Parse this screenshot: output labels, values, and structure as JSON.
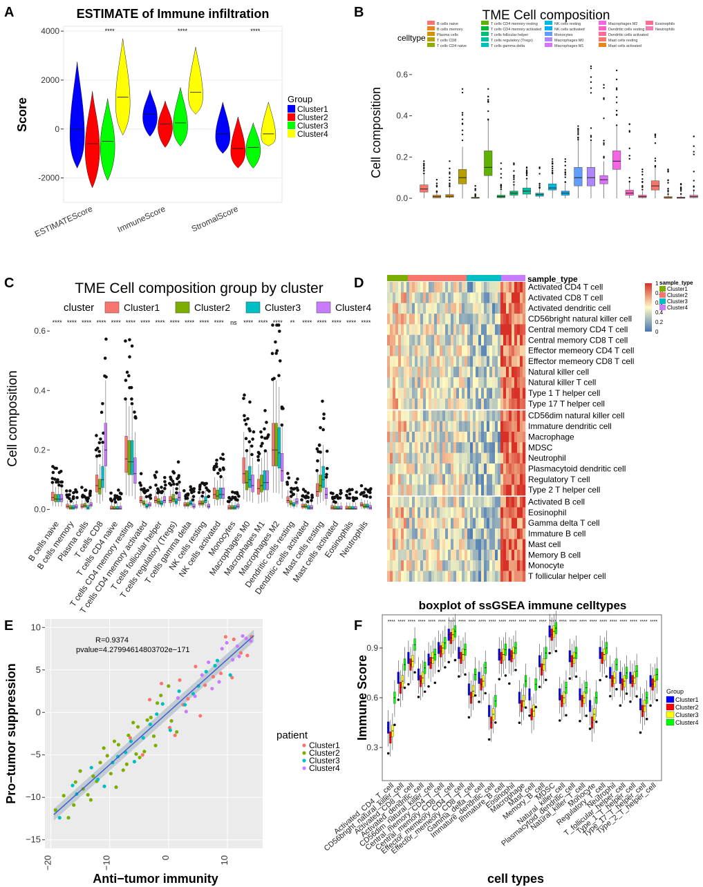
{
  "figure": {
    "panel_labels": [
      "A",
      "B",
      "C",
      "D",
      "E",
      "F"
    ]
  },
  "chart_data": [
    {
      "panel": "A",
      "type": "violin",
      "title": "ESTIMATE of Immune infiltration",
      "xlabel": "",
      "ylabel": "Score",
      "ylim": [
        -3000,
        4200
      ],
      "yticks": [
        -2000,
        0,
        2000,
        4000
      ],
      "yticklabels": [
        "-2000",
        "0",
        "2000",
        "4000"
      ],
      "categories": [
        "ESTIMATEScore",
        "ImmuneScore",
        "StromalScore"
      ],
      "significance": [
        "****",
        "****",
        "****"
      ],
      "legend_title": "Group",
      "legend_position": "right",
      "series": [
        {
          "name": "Cluster1",
          "color": "#0000ff",
          "min": [
            -1600,
            -300,
            -1000
          ],
          "max": [
            2750,
            1600,
            1100
          ],
          "median": [
            0,
            600,
            -200
          ]
        },
        {
          "name": "Cluster2",
          "color": "#ff0000",
          "min": [
            -2400,
            -750,
            -1600
          ],
          "max": [
            1550,
            1150,
            500
          ],
          "median": [
            -600,
            200,
            -800
          ]
        },
        {
          "name": "Cluster3",
          "color": "#00ff00",
          "min": [
            -2100,
            -700,
            -1600
          ],
          "max": [
            1250,
            1700,
            250
          ],
          "median": [
            -500,
            250,
            -750
          ]
        },
        {
          "name": "Cluster4",
          "color": "#ffff00",
          "min": [
            -250,
            600,
            -700
          ],
          "max": [
            3700,
            3350,
            1100
          ],
          "median": [
            1300,
            1500,
            -200
          ]
        }
      ]
    },
    {
      "panel": "B",
      "type": "box",
      "title": "TME Cell composition",
      "xlabel": "",
      "ylabel": "Cell composition",
      "ylim": [
        -0.02,
        0.66
      ],
      "yticks": [
        0,
        0.2,
        0.4,
        0.6
      ],
      "yticklabels": [
        "0.0",
        "0.2",
        "0.4",
        "0.6"
      ],
      "legend_title": "celltype",
      "legend_position": "top",
      "categories": [
        "B cells naive",
        "B cells memory",
        "Plasma cells",
        "T cells CD8",
        "T cells CD4 naive",
        "T cells CD4 memory resting",
        "T cells CD4 memory activated",
        "T cells follicular helper",
        "T cells regulatory (Tregs)",
        "T cells gamma delta",
        "NK cells resting",
        "NK cells activated",
        "Monocytes",
        "Macrophages M0",
        "Macrophages M1",
        "Macrophages M2",
        "Dendritic cells resting",
        "Dendritic cells activated",
        "Mast cells resting",
        "Mast cells activated",
        "Eosinophils",
        "Neutrophils"
      ],
      "colors": [
        "#f8766d",
        "#e7861b",
        "#d39200",
        "#b79f00",
        "#93aa00",
        "#5eb300",
        "#00ba38",
        "#00bf74",
        "#00c19f",
        "#00bfc4",
        "#00b9e3",
        "#00adfa",
        "#619cff",
        "#ae87ff",
        "#db72fb",
        "#f564e3",
        "#ff61c3",
        "#ff699c",
        "#f8766d",
        "#e7861b",
        "#ff6c91",
        "#f17eb0"
      ],
      "q1": [
        0.03,
        0.002,
        0.005,
        0.07,
        0.0,
        0.11,
        0.003,
        0.015,
        0.02,
        0.01,
        0.04,
        0.015,
        0.06,
        0.06,
        0.07,
        0.14,
        0.015,
        0.003,
        0.04,
        0.0,
        0.0,
        0.003
      ],
      "median": [
        0.045,
        0.008,
        0.01,
        0.1,
        0.002,
        0.15,
        0.008,
        0.025,
        0.035,
        0.018,
        0.05,
        0.025,
        0.1,
        0.1,
        0.09,
        0.18,
        0.025,
        0.008,
        0.06,
        0.003,
        0.002,
        0.008
      ],
      "q3": [
        0.065,
        0.015,
        0.018,
        0.14,
        0.005,
        0.23,
        0.015,
        0.035,
        0.05,
        0.025,
        0.07,
        0.035,
        0.15,
        0.15,
        0.11,
        0.23,
        0.04,
        0.015,
        0.085,
        0.008,
        0.006,
        0.015
      ],
      "whisker_low": [
        0.0,
        0.0,
        0.0,
        0.0,
        0.0,
        0.0,
        0.0,
        0.0,
        0.0,
        0.0,
        0.0,
        0.0,
        0.0,
        0.0,
        0.0,
        0.0,
        0.0,
        0.0,
        0.0,
        0.0,
        0.0,
        0.0
      ],
      "whisker_high": [
        0.12,
        0.03,
        0.05,
        0.25,
        0.01,
        0.38,
        0.035,
        0.065,
        0.09,
        0.05,
        0.12,
        0.07,
        0.28,
        0.28,
        0.18,
        0.35,
        0.08,
        0.035,
        0.15,
        0.02,
        0.015,
        0.035
      ],
      "outlier_max": [
        0.18,
        0.09,
        0.18,
        0.53,
        0.06,
        0.53,
        0.17,
        0.17,
        0.15,
        0.15,
        0.19,
        0.19,
        0.35,
        0.64,
        0.55,
        0.62,
        0.36,
        0.14,
        0.31,
        0.14,
        0.07,
        0.3
      ]
    },
    {
      "panel": "C",
      "type": "box",
      "title": "TME Cell composition group by cluster",
      "xlabel": "",
      "ylabel": "Cell composition",
      "ylim": [
        -0.02,
        0.64
      ],
      "yticks": [
        0,
        0.2,
        0.4,
        0.6
      ],
      "yticklabels": [
        "0.0",
        "0.2",
        "0.4",
        "0.6"
      ],
      "legend_title": "cluster",
      "legend_position": "top",
      "series_names": [
        "Cluster1",
        "Cluster2",
        "Cluster3",
        "Cluster4"
      ],
      "series_colors": [
        "#f8766d",
        "#7cae00",
        "#00bfc4",
        "#c77cff"
      ],
      "categories": [
        "B cells naive",
        "B cells memory",
        "Plasma cells",
        "T cells CD8",
        "T cells CD4 naive",
        "T cells CD4 memory resting",
        "T cells CD4 memory activated",
        "T cells follicular helper",
        "T cells regulatory (Tregs)",
        "T cells gamma delta",
        "NK cells resting",
        "NK cells activated",
        "Monocytes",
        "Macrophages M0",
        "Macrophages M1",
        "Macrophages M2",
        "Dendritic cells resting",
        "Dendritic cells activated",
        "Mast cells resting",
        "Mast cells activated",
        "Eosinophils",
        "Neutrophils"
      ],
      "significance": [
        "****",
        "****",
        "****",
        "****",
        "****",
        "****",
        "****",
        "****",
        "****",
        "****",
        "****",
        "****",
        "ns",
        "****",
        "****",
        "****",
        "**",
        "****",
        "****",
        "****",
        "****",
        "****"
      ],
      "median": [
        [
          0.04,
          0.035,
          0.035,
          0.035
        ],
        [
          0.01,
          0.005,
          0.005,
          0.008
        ],
        [
          0.01,
          0.012,
          0.005,
          0.015
        ],
        [
          0.08,
          0.07,
          0.1,
          0.2
        ],
        [
          0.003,
          0.002,
          0.002,
          0.003
        ],
        [
          0.17,
          0.16,
          0.16,
          0.12
        ],
        [
          0.03,
          0.02,
          0.01,
          0.015
        ],
        [
          0.03,
          0.025,
          0.02,
          0.03
        ],
        [
          0.03,
          0.035,
          0.025,
          0.04
        ],
        [
          0.015,
          0.015,
          0.02,
          0.01
        ],
        [
          0.02,
          0.02,
          0.03,
          0.01
        ],
        [
          0.05,
          0.045,
          0.05,
          0.05
        ],
        [
          0.005,
          0.005,
          0.005,
          0.01
        ],
        [
          0.12,
          0.09,
          0.1,
          0.08
        ],
        [
          0.07,
          0.08,
          0.09,
          0.09
        ],
        [
          0.2,
          0.2,
          0.19,
          0.13
        ],
        [
          0.03,
          0.02,
          0.015,
          0.025
        ],
        [
          0.01,
          0.01,
          0.005,
          0.005
        ],
        [
          0.06,
          0.08,
          0.1,
          0.05
        ],
        [
          0.005,
          0.003,
          0.002,
          0.003
        ],
        [
          0.003,
          0.002,
          0.002,
          0.002
        ],
        [
          0.015,
          0.01,
          0.01,
          0.005
        ]
      ]
    },
    {
      "panel": "D",
      "type": "heatmap",
      "title": "",
      "column_annotation_title": "sample_type",
      "column_groups": [
        "Cluster1",
        "Cluster2",
        "Cluster3",
        "Cluster4"
      ],
      "column_group_colors": [
        "#7cae00",
        "#f8766d",
        "#00bfc4",
        "#c77cff"
      ],
      "rows": [
        "Activated CD4 T cell",
        "Activated CD8 T cell",
        "Activated dendritic cell",
        "CD56bright natural killer cell",
        "Central memory CD4 T cell",
        "Central memory CD8 T cell",
        "Effector memeory CD4 T cell",
        "Effector memeory CD8 T cell",
        "Natural killer cell",
        "Natural killer T cell",
        "Type 1 T helper cell",
        "Type 17 T helper cell",
        "CD56dim natural killer cell",
        "Immature dendritic cell",
        "Macrophage",
        "MDSC",
        "Neutrophil",
        "Plasmacytoid dendritic cell",
        "Regulatory T cell",
        "Type 2 T helper cell",
        "Activated B cell",
        "Eosinophil",
        "Gamma delta T cell",
        "Immature  B cell",
        "Mast cell",
        "Memory B cell",
        "Monocyte",
        "T follicular helper cell"
      ],
      "colorbar_ticks": [
        0,
        0.2,
        0.4,
        0.6,
        0.8,
        1
      ],
      "colorbar_ticklabels": [
        "0",
        "0.2",
        "0.4",
        "0.6",
        "0.8",
        "1"
      ],
      "colorscale": [
        "#4575b4",
        "#fffbc4",
        "#d73027"
      ],
      "mean_by_group": [
        0.55,
        0.42,
        0.3,
        0.85
      ]
    },
    {
      "panel": "E",
      "type": "scatter",
      "title": "",
      "xlabel": "Anti−tumor immunity",
      "ylabel": "Pro−tumor suppression",
      "xlim": [
        -21,
        16
      ],
      "ylim": [
        -16,
        11
      ],
      "xticks": [
        -20,
        -10,
        0,
        10
      ],
      "xticklabels": [
        "−20",
        "−10",
        "0",
        "10"
      ],
      "yticks": [
        -15,
        -10,
        -5,
        0,
        5,
        10
      ],
      "yticklabels": [
        "−15",
        "−10",
        "−5",
        "0",
        "5",
        "10"
      ],
      "annotation_r": "R=0.9374",
      "annotation_p": "pvalue=4.27994614803702e−171",
      "regression": {
        "slope": 0.62,
        "intercept": 0.05
      },
      "legend_title": "patient",
      "legend_position": "right",
      "series": [
        {
          "name": "Cluster1",
          "color": "#f8766d",
          "x": [
            -6.5,
            -3.2,
            1.1,
            4.6,
            8.9,
            12.3,
            2.5,
            9.7,
            6.2,
            13.4,
            5.4,
            10.8,
            -1.2,
            3.3,
            11.1,
            7.6,
            -4.4,
            0.2,
            14.1,
            1.9
          ],
          "y": [
            -3.0,
            1.5,
            -2.7,
            5.4,
            4.6,
            7.0,
            0.9,
            8.9,
            3.2,
            6.7,
            -0.4,
            4.1,
            3.4,
            1.6,
            8.6,
            4.2,
            -5.0,
            -1.8,
            8.9,
            3.8
          ]
        },
        {
          "name": "Cluster2",
          "color": "#7cae00",
          "x": [
            -19.2,
            -17.8,
            -16.1,
            -15.0,
            -13.7,
            -12.2,
            -11.0,
            -9.8,
            -8.5,
            -7.1,
            -6.0,
            -4.9,
            -3.6,
            -2.5,
            -1.3,
            0.5,
            -14.5,
            -10.4,
            -8.9,
            -5.5,
            -3.0,
            -17.0,
            -12.8,
            -9.2,
            -6.8,
            -4.1,
            -1.9,
            1.4,
            -11.6,
            -7.7,
            -13.2,
            -15.8,
            -2.2,
            0.0,
            -5.2
          ],
          "y": [
            -11.5,
            -9.8,
            -10.9,
            -6.9,
            -9.7,
            -8.1,
            -4.2,
            -7.2,
            -3.8,
            -6.1,
            -1.2,
            -5.3,
            -0.9,
            -2.8,
            2.0,
            -1.0,
            -9.0,
            -5.1,
            -8.8,
            -4.9,
            -0.6,
            -12.4,
            -7.5,
            -3.4,
            -2.7,
            -4.6,
            1.1,
            -2.3,
            -5.9,
            -6.8,
            -10.3,
            -8.2,
            -3.9,
            3.1,
            -1.7
          ]
        },
        {
          "name": "Cluster3",
          "color": "#00bfc4",
          "x": [
            -18.5,
            -15.6,
            -13.1,
            -10.9,
            -8.6,
            -6.4,
            -4.3,
            -2.0,
            0.3,
            2.8,
            5.1,
            7.9,
            10.5,
            -12.0,
            -9.5,
            -7.3,
            -3.1,
            1.8,
            4.2,
            8.3,
            -16.3,
            -5.8,
            -1.0,
            6.4
          ],
          "y": [
            -12.4,
            -9.6,
            -6.5,
            -8.7,
            -5.2,
            -3.4,
            -3.0,
            -0.2,
            -2.1,
            0.9,
            3.1,
            5.5,
            4.4,
            -7.9,
            -5.9,
            -4.7,
            -1.4,
            2.5,
            2.2,
            6.1,
            -8.6,
            -5.8,
            1.0,
            4.8
          ]
        },
        {
          "name": "Cluster4",
          "color": "#c77cff",
          "x": [
            3.0,
            5.7,
            7.4,
            9.1,
            10.9,
            12.6,
            14.0,
            6.8,
            8.6,
            11.7,
            13.2,
            4.5,
            9.9,
            12.0,
            1.6
          ],
          "y": [
            0.1,
            4.4,
            2.8,
            7.5,
            6.2,
            9.0,
            8.4,
            5.9,
            3.6,
            7.8,
            8.7,
            1.9,
            8.2,
            6.6,
            1.7
          ]
        }
      ]
    },
    {
      "panel": "F",
      "type": "box",
      "title": "boxplot of ssGSEA immune celltypes",
      "xlabel": "cell types",
      "ylabel": "Immune Score",
      "ylim": [
        0.1,
        1.1
      ],
      "yticks": [
        0.3,
        0.6,
        0.9
      ],
      "yticklabels": [
        "0.3",
        "0.6",
        "0.9"
      ],
      "legend_title": "Group",
      "legend_position": "right",
      "series_names": [
        "Cluster1",
        "Cluster2",
        "Cluster3",
        "Cluster4"
      ],
      "series_colors": [
        "#0000ff",
        "#ff0000",
        "#ffff00",
        "#00ff00"
      ],
      "categories": [
        "Activated_CD4_T_cell",
        "CD56bright_natural_killer_cell",
        "Activated_CD8_T_cell",
        "Activated_dendritic_cell",
        "CD56dim_natural_killer_cell",
        "Central_memory_CD4_T_cell",
        "Central_memory_CD8_T_cell",
        "Effector_memeory_CD4_T_cell",
        "Effector_memeory_CD8_T_cell",
        "Gamma_delta_T_cell",
        "Immature_dendritic_cell",
        "Immature_B_cell",
        "Eosinophil",
        "Macrophage",
        "Mast_cell",
        "Memory_B_cell",
        "MDSC",
        "Natural_killer_cell",
        "Plasmacytoid_dendritic_cell",
        "Natural_killer_T_cell",
        "Monocyte",
        "Regulatory_T_cell",
        "Neutrophil",
        "T_follicular_helper_cell",
        "Type_1_T_helper_cell",
        "Type_17_T_helper_cell",
        "Type_2_T_helper_cell"
      ],
      "significance_label": "****",
      "median": [
        [
          0.42,
          0.36,
          0.4,
          0.6
        ],
        [
          0.72,
          0.66,
          0.7,
          0.8
        ],
        [
          0.84,
          0.8,
          0.82,
          0.92
        ],
        [
          0.74,
          0.7,
          0.72,
          0.78
        ],
        [
          0.83,
          0.81,
          0.84,
          0.86
        ],
        [
          0.9,
          0.88,
          0.9,
          0.93
        ],
        [
          0.98,
          0.96,
          0.98,
          1.0
        ],
        [
          0.87,
          0.84,
          0.86,
          0.89
        ],
        [
          0.65,
          0.6,
          0.64,
          0.74
        ],
        [
          0.72,
          0.68,
          0.7,
          0.78
        ],
        [
          0.52,
          0.45,
          0.5,
          0.58
        ],
        [
          0.86,
          0.84,
          0.86,
          0.89
        ],
        [
          0.86,
          0.85,
          0.87,
          0.9
        ],
        [
          0.6,
          0.55,
          0.58,
          0.7
        ],
        [
          0.62,
          0.5,
          0.52,
          0.68
        ],
        [
          0.82,
          0.77,
          0.8,
          0.87
        ],
        [
          1.0,
          0.98,
          1.0,
          1.02
        ],
        [
          0.62,
          0.58,
          0.6,
          0.66
        ],
        [
          0.85,
          0.82,
          0.84,
          0.87
        ],
        [
          0.62,
          0.58,
          0.6,
          0.66
        ],
        [
          0.55,
          0.45,
          0.5,
          0.6
        ],
        [
          0.87,
          0.84,
          0.86,
          0.9
        ],
        [
          0.75,
          0.7,
          0.72,
          0.8
        ],
        [
          0.72,
          0.68,
          0.7,
          0.75
        ],
        [
          0.72,
          0.7,
          0.72,
          0.76
        ],
        [
          0.56,
          0.52,
          0.55,
          0.6
        ],
        [
          0.7,
          0.68,
          0.7,
          0.74
        ]
      ]
    }
  ]
}
